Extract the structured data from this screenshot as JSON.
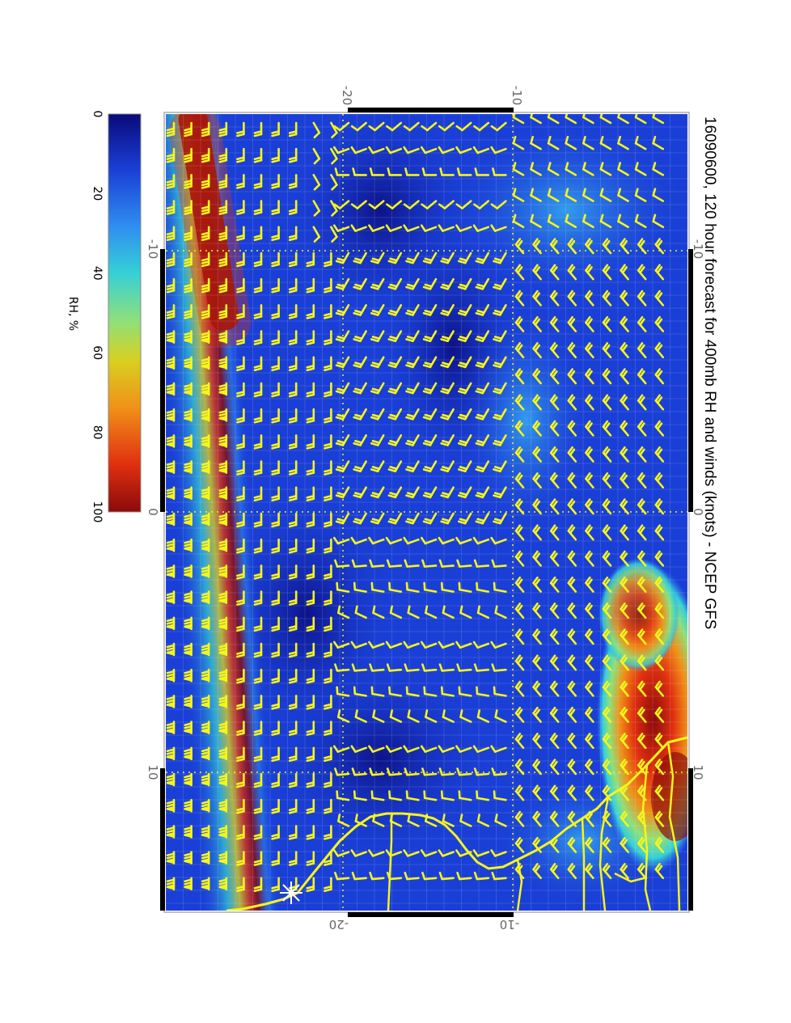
{
  "figure": {
    "title": "16090600, 120 hour forecast for 400mb RH and winds (knots) - NCEP GFS"
  },
  "colorbar": {
    "label": "RH, %",
    "ticks": [
      "0",
      "20",
      "40",
      "60",
      "80",
      "100"
    ],
    "colors": [
      "#0a0a7a",
      "#1a3fd6",
      "#2f8cf0",
      "#36d0d6",
      "#8fe07a",
      "#d8d020",
      "#f09018",
      "#e03010",
      "#8a0a0a"
    ]
  },
  "map": {
    "top_axis_labels": [
      "-20",
      "-10"
    ],
    "bottom_axis_labels": [
      "-20",
      "-10"
    ],
    "left_axis_labels": [
      "-10",
      "0",
      "10"
    ],
    "right_axis_labels": [
      "-10",
      "0",
      "10"
    ],
    "background_color": "#1a3fd6",
    "barb_color": "#f5f51e",
    "coastline_color": "#f5f51e",
    "marker_icon": "asterisk-marker-icon",
    "marker_color": "#ffffff"
  }
}
